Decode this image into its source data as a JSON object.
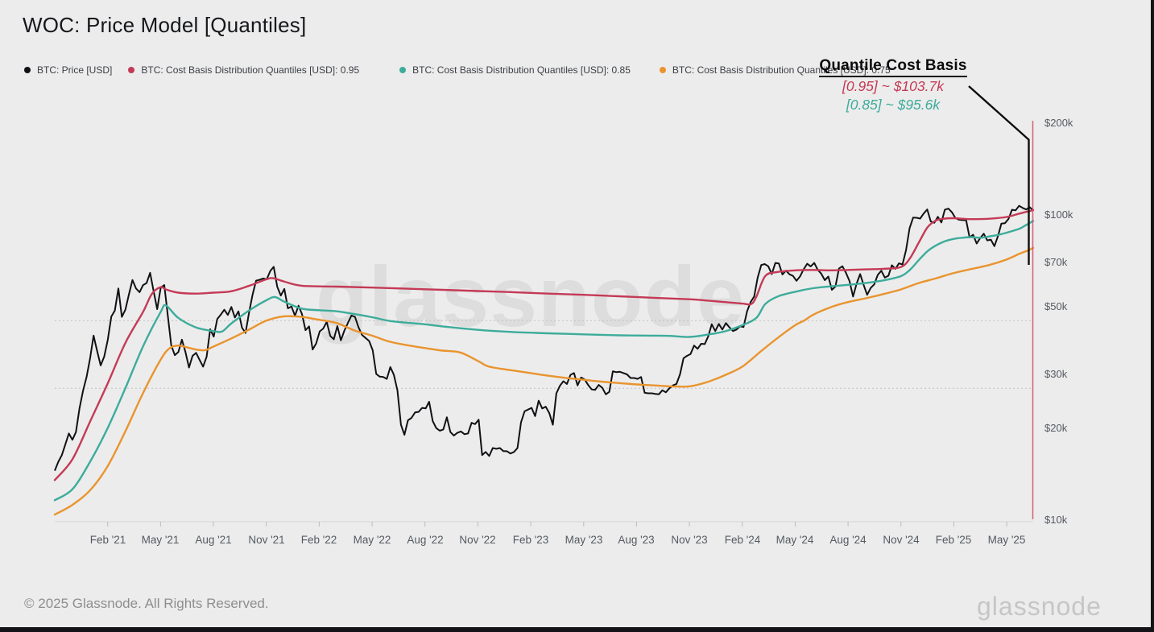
{
  "title": "WOC: Price Model [Quantiles]",
  "legend": [
    {
      "label": "BTC: Price [USD]",
      "color": "#101114"
    },
    {
      "label": "BTC: Cost Basis Distribution Quantiles [USD]: 0.95",
      "color": "#c43a56"
    },
    {
      "label": "BTC: Cost Basis Distribution Quantiles [USD]: 0.85",
      "color": "#3dac9b"
    },
    {
      "label": "BTC: Cost Basis Distribution Quantiles [USD]: 0.75",
      "color": "#e9942e"
    }
  ],
  "annotation": {
    "title": "Quantile Cost Basis",
    "lines": [
      {
        "text": "[0.95] ~ $103.7k",
        "color": "#c43a56"
      },
      {
        "text": "[0.85] ~ $95.6k",
        "color": "#3dac9b"
      }
    ]
  },
  "watermark": "glassnode",
  "brand_logo": "glassnode",
  "footer": {
    "copyright": "© 2025 Glassnode. All Rights Reserved."
  },
  "colors": {
    "background": "#ececec",
    "axis_text": "#555a61",
    "axis_line": "#d4d4d4",
    "tick": "#bdbdbd",
    "dotted_grid": "#c2c2c2",
    "price": "#101114",
    "q95": "#c43a56",
    "q85": "#3dac9b",
    "q75": "#e9942e",
    "marker_red_line": "#d4506a",
    "pointer_black": "#0d0d0d"
  },
  "chart_data": {
    "type": "line",
    "title": "WOC: Price Model [Quantiles]",
    "y_scale": "log",
    "y_unit": "USD",
    "ylim_usd_k": [
      10,
      200
    ],
    "x_range": {
      "start": "2020-11",
      "end": "2025-06",
      "total_months": 55.5
    },
    "y_ticks": [
      {
        "label": "$200k",
        "v": 200
      },
      {
        "label": "$100k",
        "v": 100
      },
      {
        "label": "$70k",
        "v": 70
      },
      {
        "label": "$50k",
        "v": 50
      },
      {
        "label": "$30k",
        "v": 30
      },
      {
        "label": "$20k",
        "v": 20
      },
      {
        "label": "$10k",
        "v": 10
      }
    ],
    "x_ticks": [
      {
        "label": "Feb '21",
        "m": 3
      },
      {
        "label": "May '21",
        "m": 6
      },
      {
        "label": "Aug '21",
        "m": 9
      },
      {
        "label": "Nov '21",
        "m": 12
      },
      {
        "label": "Feb '22",
        "m": 15
      },
      {
        "label": "May '22",
        "m": 18
      },
      {
        "label": "Aug '22",
        "m": 21
      },
      {
        "label": "Nov '22",
        "m": 24
      },
      {
        "label": "Feb '23",
        "m": 27
      },
      {
        "label": "May '23",
        "m": 30
      },
      {
        "label": "Aug '23",
        "m": 33
      },
      {
        "label": "Nov '23",
        "m": 36
      },
      {
        "label": "Feb '24",
        "m": 39
      },
      {
        "label": "May '24",
        "m": 42
      },
      {
        "label": "Aug '24",
        "m": 45
      },
      {
        "label": "Nov '24",
        "m": 48
      },
      {
        "label": "Feb '25",
        "m": 51
      },
      {
        "label": "May '25",
        "m": 54
      }
    ],
    "dotted_gridlines_usd_k": [
      45,
      27
    ],
    "series": [
      {
        "name": "BTC: Price [USD]",
        "color_key": "price",
        "cadence": "weekly",
        "values_usd_k": [
          14.5,
          15.5,
          16.3,
          17.7,
          19.2,
          18.3,
          19.4,
          23.2,
          26.5,
          29.4,
          33.9,
          40.2,
          35.8,
          32.1,
          34.3,
          38.9,
          46.4,
          48.6,
          57.4,
          46.3,
          48.9,
          54.9,
          61.2,
          57.4,
          55.8,
          58.9,
          59.8,
          64.6,
          56.2,
          49.1,
          57.8,
          58.9,
          46.7,
          37.3,
          34.7,
          35.5,
          39.0,
          35.5,
          31.6,
          34.5,
          35.3,
          33.5,
          31.8,
          34.3,
          42.2,
          39.9,
          45.6,
          47.1,
          48.9,
          47.0,
          49.9,
          46.1,
          48.3,
          42.7,
          41.0,
          47.7,
          54.7,
          60.9,
          61.3,
          61.9,
          61.5,
          65.5,
          67.6,
          58.1,
          54.4,
          57.2,
          49.4,
          50.1,
          46.7,
          50.4,
          47.3,
          41.9,
          43.1,
          36.2,
          37.9,
          41.5,
          42.4,
          44.6,
          40.1,
          39.1,
          43.2,
          38.8,
          41.8,
          44.3,
          46.8,
          46.3,
          42.8,
          40.4,
          39.5,
          38.6,
          36.0,
          30.1,
          29.5,
          29.4,
          29.0,
          31.7,
          29.9,
          26.6,
          20.5,
          19.0,
          21.2,
          21.6,
          22.5,
          22.6,
          23.3,
          23.2,
          24.4,
          21.1,
          20.0,
          19.6,
          19.8,
          21.7,
          19.4,
          18.9,
          19.3,
          19.5,
          19.1,
          19.2,
          20.8,
          20.6,
          21.3,
          16.3,
          16.7,
          16.2,
          17.2,
          17.1,
          17.2,
          16.8,
          16.8,
          16.5,
          16.7,
          17.2,
          20.9,
          22.7,
          23.0,
          23.3,
          21.9,
          24.6,
          23.2,
          23.5,
          22.4,
          20.5,
          26.0,
          27.5,
          28.5,
          27.9,
          29.9,
          30.3,
          27.6,
          29.3,
          28.9,
          27.7,
          26.8,
          26.7,
          27.7,
          27.1,
          25.8,
          26.3,
          30.7,
          30.5,
          30.6,
          30.3,
          30.0,
          29.2,
          29.2,
          29.0,
          29.4,
          26.1,
          26.0,
          26.0,
          25.9,
          25.8,
          26.6,
          26.2,
          27.0,
          27.6,
          27.9,
          30.0,
          33.9,
          34.5,
          35.0,
          37.3,
          36.4,
          37.8,
          37.7,
          40.0,
          43.8,
          41.6,
          43.9,
          42.1,
          44.2,
          42.8,
          41.6,
          42.1,
          43.1,
          42.9,
          48.3,
          51.8,
          54.0,
          62.4,
          68.5,
          69.0,
          67.9,
          64.0,
          69.6,
          69.3,
          63.8,
          65.7,
          63.9,
          63.1,
          60.8,
          62.9,
          66.3,
          69.2,
          67.8,
          69.6,
          66.1,
          64.2,
          61.1,
          62.8,
          56.8,
          58.2,
          66.7,
          67.9,
          64.6,
          60.7,
          54.0,
          59.5,
          64.0,
          58.9,
          54.7,
          57.6,
          59.2,
          63.6,
          65.6,
          62.3,
          63.2,
          68.4,
          66.6,
          69.4,
          68.8,
          76.7,
          90.5,
          98.0,
          97.9,
          97.3,
          101.1,
          104.3,
          95.2,
          94.3,
          98.6,
          94.5,
          104.1,
          104.9,
          102.0,
          97.6,
          96.5,
          96.2,
          96.1,
          84.4,
          86.1,
          80.6,
          84.0,
          86.8,
          82.5,
          83.0,
          79.0,
          85.0,
          93.7,
          94.0,
          97.0,
          104.0,
          103.5,
          107.2,
          105.5,
          104.2,
          106.0,
          103.5
        ]
      },
      {
        "name": "BTC: Cost Basis Distribution Quantiles [USD]: 0.95",
        "color_key": "q95",
        "end_value_usd_k": 103.7,
        "points_month_value": [
          [
            0,
            13.5
          ],
          [
            1,
            15.8
          ],
          [
            2,
            21
          ],
          [
            3,
            28
          ],
          [
            4,
            38
          ],
          [
            5,
            48
          ],
          [
            5.5,
            55
          ],
          [
            6,
            58
          ],
          [
            6.3,
            57
          ],
          [
            7,
            55.6
          ],
          [
            8,
            55.2
          ],
          [
            9,
            55.6
          ],
          [
            10,
            56.2
          ],
          [
            11,
            58.5
          ],
          [
            12,
            61.5
          ],
          [
            12.4,
            62
          ],
          [
            13,
            60.5
          ],
          [
            14,
            58.6
          ],
          [
            16,
            58.2
          ],
          [
            18,
            57.8
          ],
          [
            20,
            57.3
          ],
          [
            22,
            56.8
          ],
          [
            24,
            56.3
          ],
          [
            26,
            55.8
          ],
          [
            28,
            55.2
          ],
          [
            30,
            54.7
          ],
          [
            32,
            54.1
          ],
          [
            34,
            53.5
          ],
          [
            36,
            52.9
          ],
          [
            37,
            52.4
          ],
          [
            38,
            51.8
          ],
          [
            39,
            51.2
          ],
          [
            39.5,
            51
          ],
          [
            39.8,
            54
          ],
          [
            40.3,
            63
          ],
          [
            41,
            65
          ],
          [
            42,
            65.8
          ],
          [
            43,
            66
          ],
          [
            44,
            65.8
          ],
          [
            45,
            66
          ],
          [
            46,
            66.3
          ],
          [
            47,
            66.6
          ],
          [
            48,
            67.5
          ],
          [
            48.5,
            72
          ],
          [
            49,
            81
          ],
          [
            49.5,
            91
          ],
          [
            50,
            96
          ],
          [
            50.5,
            97.3
          ],
          [
            51,
            97.6
          ],
          [
            51.5,
            97.2
          ],
          [
            52,
            96.9
          ],
          [
            53,
            97.2
          ],
          [
            54,
            98.5
          ],
          [
            54.7,
            101
          ],
          [
            55.5,
            103.7
          ]
        ]
      },
      {
        "name": "BTC: Cost Basis Distribution Quantiles [USD]: 0.85",
        "color_key": "q85",
        "end_value_usd_k": 95.6,
        "points_month_value": [
          [
            0,
            11.6
          ],
          [
            1,
            12.6
          ],
          [
            2,
            15.5
          ],
          [
            3,
            20
          ],
          [
            4,
            27
          ],
          [
            5,
            37
          ],
          [
            6,
            48
          ],
          [
            6.3,
            50.5
          ],
          [
            7,
            46
          ],
          [
            8,
            42.8
          ],
          [
            9,
            41.6
          ],
          [
            9.5,
            41.5
          ],
          [
            10,
            44
          ],
          [
            11,
            48.5
          ],
          [
            12,
            52.5
          ],
          [
            12.5,
            53.8
          ],
          [
            13,
            52
          ],
          [
            14,
            49.3
          ],
          [
            15,
            48.7
          ],
          [
            16,
            48.3
          ],
          [
            17,
            47.3
          ],
          [
            18,
            46.2
          ],
          [
            19,
            44.9
          ],
          [
            20,
            44.3
          ],
          [
            21,
            43.8
          ],
          [
            22,
            43.1
          ],
          [
            23,
            42.5
          ],
          [
            24,
            42
          ],
          [
            25,
            41.6
          ],
          [
            26,
            41.3
          ],
          [
            27,
            41.1
          ],
          [
            28,
            40.9
          ],
          [
            30,
            40.6
          ],
          [
            32,
            40.3
          ],
          [
            34,
            40.2
          ],
          [
            35,
            40.1
          ],
          [
            36,
            39.8
          ],
          [
            37,
            40.5
          ],
          [
            38,
            41.5
          ],
          [
            39,
            43.5
          ],
          [
            39.8,
            46
          ],
          [
            40.3,
            51
          ],
          [
            41,
            54
          ],
          [
            42,
            56
          ],
          [
            43,
            57.5
          ],
          [
            44,
            58.3
          ],
          [
            45,
            59
          ],
          [
            46,
            59.8
          ],
          [
            47,
            61
          ],
          [
            48,
            63
          ],
          [
            48.5,
            66
          ],
          [
            49,
            71
          ],
          [
            49.5,
            76
          ],
          [
            50,
            79.5
          ],
          [
            50.5,
            82
          ],
          [
            51,
            83.5
          ],
          [
            51.5,
            84.2
          ],
          [
            52,
            84.6
          ],
          [
            52.5,
            84.2
          ],
          [
            53,
            85
          ],
          [
            53.5,
            86
          ],
          [
            54,
            87.5
          ],
          [
            54.7,
            90
          ],
          [
            55,
            92
          ],
          [
            55.5,
            95.6
          ]
        ]
      },
      {
        "name": "BTC: Cost Basis Distribution Quantiles [USD]: 0.75",
        "color_key": "q75",
        "end_value_usd_k": 78,
        "points_month_value": [
          [
            0,
            10.4
          ],
          [
            1,
            11.2
          ],
          [
            2,
            12.5
          ],
          [
            3,
            15
          ],
          [
            4,
            19.5
          ],
          [
            5,
            26
          ],
          [
            6,
            33.5
          ],
          [
            6.5,
            36.5
          ],
          [
            7,
            37.3
          ],
          [
            7.5,
            36.8
          ],
          [
            8,
            36.2
          ],
          [
            8.5,
            36
          ],
          [
            9,
            37
          ],
          [
            10,
            39.3
          ],
          [
            11,
            42
          ],
          [
            12,
            45
          ],
          [
            13,
            46.5
          ],
          [
            14,
            46.3
          ],
          [
            15,
            45.3
          ],
          [
            16,
            44.2
          ],
          [
            17,
            41.8
          ],
          [
            18,
            40.2
          ],
          [
            19,
            38.4
          ],
          [
            20,
            37.4
          ],
          [
            21,
            36.6
          ],
          [
            22,
            35.9
          ],
          [
            23,
            35.4
          ],
          [
            24,
            33.2
          ],
          [
            24.5,
            32
          ],
          [
            25,
            31.5
          ],
          [
            26,
            30.9
          ],
          [
            27,
            30.3
          ],
          [
            28,
            29.7
          ],
          [
            29,
            29.2
          ],
          [
            30,
            28.8
          ],
          [
            31,
            28.4
          ],
          [
            32,
            28.1
          ],
          [
            33,
            27.8
          ],
          [
            34,
            27.6
          ],
          [
            35,
            27.4
          ],
          [
            36,
            27.4
          ],
          [
            37,
            28.3
          ],
          [
            38,
            29.8
          ],
          [
            39,
            31.8
          ],
          [
            40,
            35.5
          ],
          [
            41,
            39.5
          ],
          [
            42,
            43.5
          ],
          [
            42.5,
            45
          ],
          [
            43,
            47
          ],
          [
            44,
            49.8
          ],
          [
            45,
            51.8
          ],
          [
            46,
            53.3
          ],
          [
            47,
            55
          ],
          [
            48,
            57
          ],
          [
            49,
            59.8
          ],
          [
            50,
            62
          ],
          [
            51,
            64.5
          ],
          [
            52,
            66.5
          ],
          [
            53,
            68.5
          ],
          [
            54,
            71.5
          ],
          [
            54.7,
            74.5
          ],
          [
            55.2,
            76.5
          ],
          [
            55.5,
            78
          ]
        ]
      }
    ]
  }
}
